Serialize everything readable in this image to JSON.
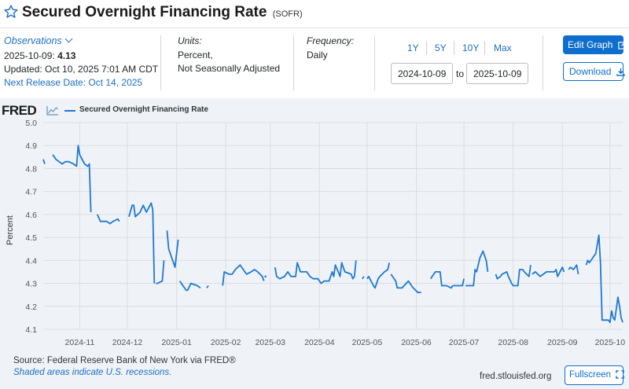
{
  "header": {
    "title": "Secured Overnight Financing Rate",
    "series_code": "(SOFR)"
  },
  "info": {
    "observations_label": "Observations",
    "obs_date": "2025-10-09:",
    "obs_value": "4.13",
    "updated": "Updated: Oct 10, 2025 7:01 AM CDT",
    "next_release": "Next Release Date: Oct 14, 2025",
    "units_label": "Units:",
    "units_line1": "Percent,",
    "units_line2": "Not Seasonally Adjusted",
    "frequency_label": "Frequency:",
    "frequency_value": "Daily"
  },
  "controls": {
    "range_buttons": [
      "1Y",
      "5Y",
      "10Y",
      "Max"
    ],
    "start_date": "2024-10-09",
    "to_label": "to",
    "end_date": "2025-10-09",
    "edit_label": "Edit Graph",
    "download_label": "Download",
    "fullscreen_label": "Fullscreen"
  },
  "footer": {
    "fred_logo": "FRED",
    "source": "Source: Federal Reserve Bank of New York via FRED®",
    "recession_note": "Shaded areas indicate U.S. recessions.",
    "site": "fred.stlouisfed.org"
  },
  "colors": {
    "line": "#1f78d1",
    "accent": "#0d6ecd",
    "panel_bg": "#eff3f8"
  },
  "chart_data": {
    "type": "line",
    "legend_position": "top-left",
    "grid": true,
    "ylabel": "Percent",
    "ylim": [
      4.1,
      5.0
    ],
    "yticks": [
      "4.1",
      "4.2",
      "4.3",
      "4.4",
      "4.5",
      "4.6",
      "4.7",
      "4.8",
      "4.9",
      "5.0"
    ],
    "xlim": [
      "2024-10-09",
      "2025-10-09"
    ],
    "xticks": [
      {
        "date": "2024-11-01",
        "label": "2024-11"
      },
      {
        "date": "2024-12-01",
        "label": "2024-12"
      },
      {
        "date": "2025-01-01",
        "label": "2025-01"
      },
      {
        "date": "2025-02-01",
        "label": "2025-02"
      },
      {
        "date": "2025-03-01",
        "label": "2025-03"
      },
      {
        "date": "2025-04-01",
        "label": "2025-04"
      },
      {
        "date": "2025-05-01",
        "label": "2025-05"
      },
      {
        "date": "2025-06-01",
        "label": "2025-06"
      },
      {
        "date": "2025-07-01",
        "label": "2025-07"
      },
      {
        "date": "2025-08-01",
        "label": "2025-08"
      },
      {
        "date": "2025-09-01",
        "label": "2025-09"
      },
      {
        "date": "2025-10-01",
        "label": "2025-10"
      }
    ],
    "series": [
      {
        "name": "Secured Overnight Financing Rate",
        "segments": [
          [
            [
              "2024-10-09",
              4.84
            ],
            [
              "2024-10-10",
              4.82
            ]
          ],
          [
            [
              "2024-10-15",
              4.86
            ],
            [
              "2024-10-17",
              4.84
            ],
            [
              "2024-10-21",
              4.82
            ],
            [
              "2024-10-23",
              4.83
            ],
            [
              "2024-10-25",
              4.83
            ],
            [
              "2024-10-28",
              4.82
            ],
            [
              "2024-10-30",
              4.81
            ],
            [
              "2024-10-31",
              4.9
            ],
            [
              "2024-11-01",
              4.86
            ],
            [
              "2024-11-04",
              4.82
            ],
            [
              "2024-11-06",
              4.81
            ],
            [
              "2024-11-07",
              4.82
            ],
            [
              "2024-11-08",
              4.61
            ]
          ],
          [
            [
              "2024-11-12",
              4.6
            ],
            [
              "2024-11-14",
              4.57
            ],
            [
              "2024-11-18",
              4.57
            ],
            [
              "2024-11-20",
              4.56
            ],
            [
              "2024-11-22",
              4.57
            ],
            [
              "2024-11-25",
              4.58
            ],
            [
              "2024-11-26",
              4.57
            ]
          ],
          [
            [
              "2024-12-02",
              4.59
            ],
            [
              "2024-12-04",
              4.64
            ],
            [
              "2024-12-05",
              4.64
            ],
            [
              "2024-12-06",
              4.59
            ],
            [
              "2024-12-09",
              4.61
            ],
            [
              "2024-12-11",
              4.64
            ],
            [
              "2024-12-13",
              4.61
            ],
            [
              "2024-12-16",
              4.65
            ],
            [
              "2024-12-17",
              4.62
            ],
            [
              "2024-12-18",
              4.3
            ]
          ],
          [
            [
              "2024-12-19",
              4.3
            ],
            [
              "2024-12-20",
              4.3
            ],
            [
              "2024-12-23",
              4.31
            ],
            [
              "2024-12-24",
              4.4
            ]
          ],
          [
            [
              "2024-12-26",
              4.53
            ],
            [
              "2024-12-27",
              4.45
            ],
            [
              "2024-12-31",
              4.37
            ],
            [
              "2025-01-02",
              4.49
            ]
          ],
          [
            [
              "2025-01-03",
              4.31
            ],
            [
              "2025-01-06",
              4.28
            ],
            [
              "2025-01-07",
              4.27
            ],
            [
              "2025-01-08",
              4.27
            ],
            [
              "2025-01-10",
              4.3
            ],
            [
              "2025-01-14",
              4.29
            ],
            [
              "2025-01-16",
              4.28
            ]
          ],
          [
            [
              "2025-01-20",
              4.28
            ],
            [
              "2025-01-21",
              4.29
            ]
          ],
          [
            [
              "2025-01-30",
              4.29
            ],
            [
              "2025-01-31",
              4.35
            ],
            [
              "2025-02-03",
              4.34
            ],
            [
              "2025-02-05",
              4.34
            ],
            [
              "2025-02-07",
              4.36
            ],
            [
              "2025-02-10",
              4.38
            ],
            [
              "2025-02-12",
              4.36
            ],
            [
              "2025-02-14",
              4.34
            ],
            [
              "2025-02-17",
              4.35
            ],
            [
              "2025-02-19",
              4.36
            ],
            [
              "2025-02-21",
              4.35
            ],
            [
              "2025-02-24",
              4.33
            ],
            [
              "2025-02-25",
              4.31
            ]
          ],
          [
            [
              "2025-02-26",
              4.33
            ]
          ],
          [
            [
              "2025-03-04",
              4.37
            ],
            [
              "2025-03-05",
              4.33
            ],
            [
              "2025-03-07",
              4.32
            ],
            [
              "2025-03-10",
              4.33
            ],
            [
              "2025-03-12",
              4.35
            ],
            [
              "2025-03-14",
              4.33
            ],
            [
              "2025-03-17",
              4.33
            ],
            [
              "2025-03-18",
              4.39
            ],
            [
              "2025-03-20",
              4.35
            ],
            [
              "2025-03-24",
              4.35
            ],
            [
              "2025-03-26",
              4.33
            ],
            [
              "2025-03-28",
              4.32
            ],
            [
              "2025-03-31",
              4.32
            ],
            [
              "2025-04-02",
              4.3
            ],
            [
              "2025-04-04",
              4.31
            ],
            [
              "2025-04-07",
              4.31
            ],
            [
              "2025-04-09",
              4.35
            ],
            [
              "2025-04-10",
              4.33
            ],
            [
              "2025-04-11",
              4.38
            ],
            [
              "2025-04-14",
              4.33
            ],
            [
              "2025-04-15",
              4.39
            ],
            [
              "2025-04-17",
              4.35
            ],
            [
              "2025-04-21",
              4.34
            ],
            [
              "2025-04-22",
              4.32
            ],
            [
              "2025-04-23",
              4.33
            ],
            [
              "2025-04-24",
              4.4
            ]
          ],
          [
            [
              "2025-04-28",
              4.32
            ],
            [
              "2025-04-29",
              4.33
            ]
          ],
          [
            [
              "2025-05-01",
              4.32
            ],
            [
              "2025-05-02",
              4.33
            ],
            [
              "2025-05-05",
              4.29
            ],
            [
              "2025-05-06",
              4.28
            ],
            [
              "2025-05-07",
              4.3
            ],
            [
              "2025-05-08",
              4.32
            ],
            [
              "2025-05-09",
              4.33
            ],
            [
              "2025-05-12",
              4.35
            ],
            [
              "2025-05-14",
              4.36
            ],
            [
              "2025-05-15",
              4.39
            ]
          ],
          [
            [
              "2025-05-16",
              4.34
            ],
            [
              "2025-05-19",
              4.31
            ],
            [
              "2025-05-20",
              4.28
            ],
            [
              "2025-05-22",
              4.28
            ],
            [
              "2025-05-23",
              4.28
            ],
            [
              "2025-05-27",
              4.31
            ],
            [
              "2025-05-29",
              4.29
            ],
            [
              "2025-05-30",
              4.28
            ],
            [
              "2025-06-02",
              4.26
            ],
            [
              "2025-06-03",
              4.26
            ],
            [
              "2025-06-04",
              4.26
            ]
          ],
          [
            [
              "2025-06-10",
              4.32
            ],
            [
              "2025-06-11",
              4.33
            ],
            [
              "2025-06-13",
              4.35
            ],
            [
              "2025-06-16",
              4.35
            ],
            [
              "2025-06-17",
              4.29
            ],
            [
              "2025-06-20",
              4.29
            ],
            [
              "2025-06-23",
              4.28
            ],
            [
              "2025-06-24",
              4.29
            ],
            [
              "2025-06-26",
              4.29
            ],
            [
              "2025-06-30",
              4.29
            ],
            [
              "2025-07-01",
              4.32
            ]
          ],
          [
            [
              "2025-07-02",
              4.29
            ],
            [
              "2025-07-04",
              4.29
            ],
            [
              "2025-07-07",
              4.29
            ],
            [
              "2025-07-08",
              4.36
            ],
            [
              "2025-07-09",
              4.35
            ],
            [
              "2025-07-11",
              4.41
            ],
            [
              "2025-07-13",
              4.44
            ],
            [
              "2025-07-15",
              4.4
            ],
            [
              "2025-07-16",
              4.35
            ]
          ],
          [
            [
              "2025-07-21",
              4.34
            ],
            [
              "2025-07-22",
              4.32
            ],
            [
              "2025-07-24",
              4.33
            ],
            [
              "2025-07-25",
              4.34
            ],
            [
              "2025-07-28",
              4.35
            ],
            [
              "2025-07-29",
              4.33
            ],
            [
              "2025-07-31",
              4.3
            ],
            [
              "2025-08-01",
              4.29
            ],
            [
              "2025-08-04",
              4.29
            ],
            [
              "2025-08-05",
              4.36
            ],
            [
              "2025-08-07",
              4.36
            ],
            [
              "2025-08-08",
              4.35
            ],
            [
              "2025-08-11",
              4.33
            ],
            [
              "2025-08-12",
              4.38
            ]
          ],
          [
            [
              "2025-08-13",
              4.34
            ],
            [
              "2025-08-15",
              4.35
            ],
            [
              "2025-08-18",
              4.33
            ],
            [
              "2025-08-20",
              4.34
            ],
            [
              "2025-08-22",
              4.35
            ],
            [
              "2025-08-25",
              4.35
            ],
            [
              "2025-08-27",
              4.35
            ],
            [
              "2025-08-28",
              4.36
            ],
            [
              "2025-08-29",
              4.33
            ],
            [
              "2025-09-01",
              4.37
            ],
            [
              "2025-09-02",
              4.35
            ]
          ],
          [
            [
              "2025-09-05",
              4.36
            ],
            [
              "2025-09-06",
              4.37
            ],
            [
              "2025-09-08",
              4.36
            ],
            [
              "2025-09-10",
              4.38
            ],
            [
              "2025-09-11",
              4.34
            ]
          ],
          [
            [
              "2025-09-16",
              4.38
            ],
            [
              "2025-09-17",
              4.4
            ],
            [
              "2025-09-18",
              4.39
            ],
            [
              "2025-09-22",
              4.43
            ],
            [
              "2025-09-24",
              4.51
            ],
            [
              "2025-09-25",
              4.39
            ],
            [
              "2025-09-26",
              4.14
            ],
            [
              "2025-09-29",
              4.14
            ],
            [
              "2025-09-30",
              4.14
            ],
            [
              "2025-10-01",
              4.13
            ],
            [
              "2025-10-02",
              4.18
            ],
            [
              "2025-10-03",
              4.15
            ],
            [
              "2025-10-04",
              4.14
            ],
            [
              "2025-10-06",
              4.24
            ],
            [
              "2025-10-07",
              4.2
            ],
            [
              "2025-10-08",
              4.15
            ],
            [
              "2025-10-09",
              4.13
            ]
          ]
        ]
      }
    ]
  }
}
